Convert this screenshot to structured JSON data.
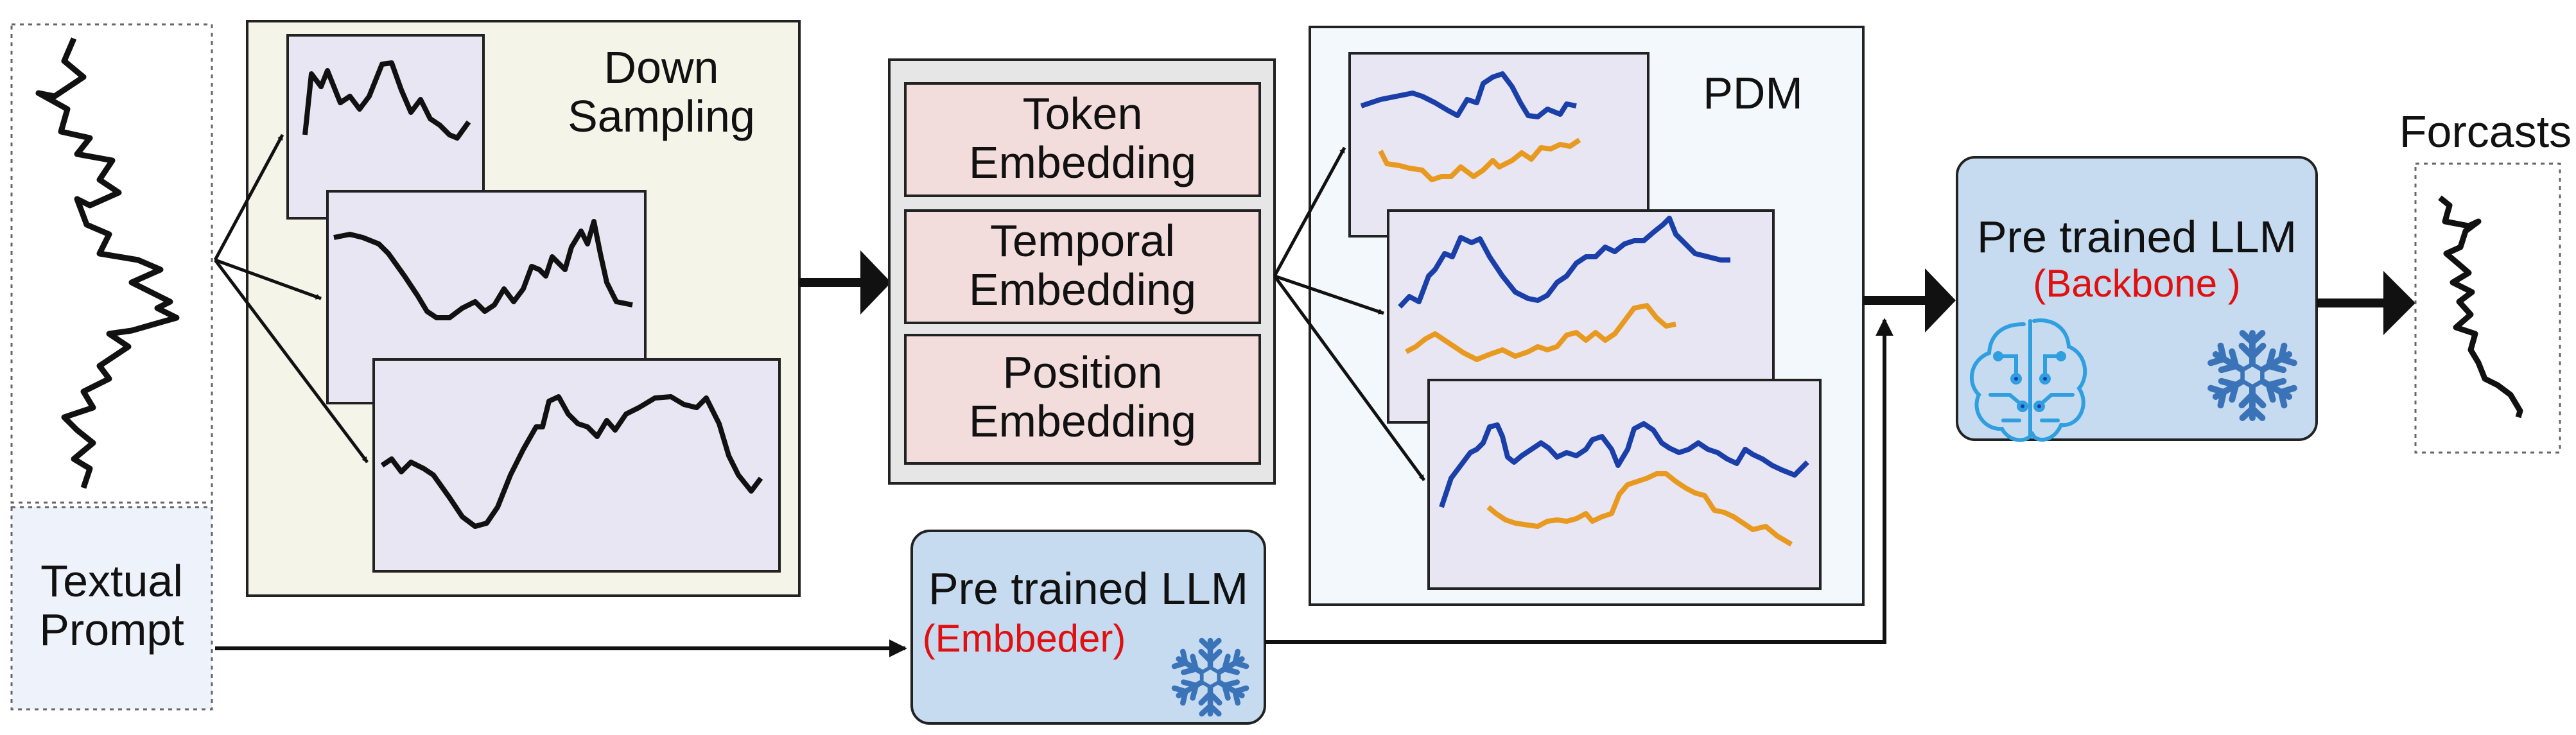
{
  "input": {
    "prompt_line1": "Textual",
    "prompt_line2": "Prompt"
  },
  "downsampling": {
    "title_line1": "Down",
    "title_line2": "Sampling"
  },
  "embeddings": [
    {
      "line1": "Token",
      "line2": "Embedding"
    },
    {
      "line1": "Temporal",
      "line2": "Embedding"
    },
    {
      "line1": "Position",
      "line2": "Embedding"
    }
  ],
  "pdm": {
    "title": "PDM"
  },
  "llm_embedder": {
    "title": "Pre trained LLM",
    "tag": "(Embbeder)",
    "icon": "snowflake-icon"
  },
  "llm_backbone": {
    "title": "Pre trained LLM",
    "tag": "(Backbone )",
    "icons": [
      "brain-circuit-icon",
      "snowflake-icon"
    ]
  },
  "output": {
    "title": "Forcasts"
  },
  "colors": {
    "series": "#000000",
    "pdm_blue": "#1b3fa8",
    "pdm_orange": "#e89a20",
    "subplot_bg": "#e8e6f3",
    "downsampling_bg": "#f4f4e8",
    "embedding_box": "#f3dcdc",
    "embedding_panel": "#e6e6e6",
    "pdm_bg": "#f2f8fc",
    "llm_box": "#c6daf0",
    "prompt_bg": "#eef2fb",
    "tag_red": "#e01010",
    "snowflake": "#3a73b8",
    "brain": "#2f9fe0"
  }
}
